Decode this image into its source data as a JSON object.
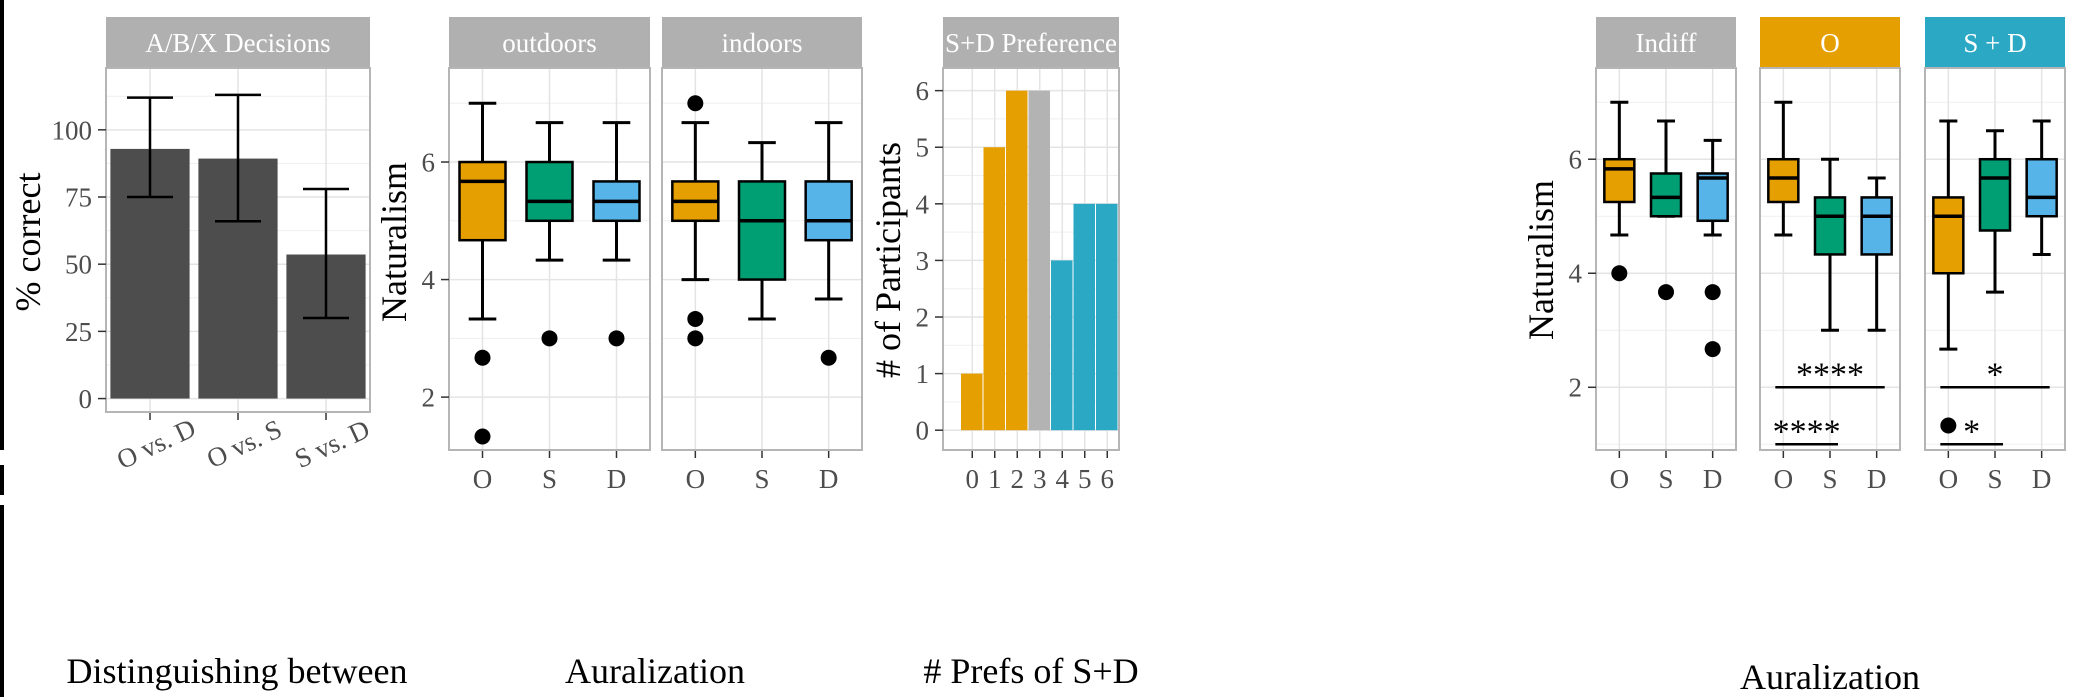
{
  "figure": {
    "facet_strip_color": "#b0b0b0",
    "panel_border_color": "#b5b5b5",
    "grid_color": "#e4e4e4",
    "bar_color": "#4d4d4d",
    "colors": {
      "O": "#e69f00",
      "S": "#009e73",
      "D": "#56b4e9",
      "Indiff": "#b3b3b3",
      "S+D": "#2aa8c4"
    }
  },
  "chart_data": [
    {
      "id": "abx",
      "type": "bar",
      "strip": "A/B/X Decisions",
      "title": "",
      "xlabel": "Distinguishing between",
      "ylabel": "% correct",
      "categories": [
        "O vs. D",
        "O vs. S",
        "S vs. D"
      ],
      "values": [
        92.9,
        89.3,
        53.6
      ],
      "error_low": [
        75,
        66,
        30
      ],
      "error_high": [
        112,
        113,
        78
      ],
      "ylim": [
        -5,
        123
      ],
      "yticks": [
        0,
        25,
        50,
        75,
        100
      ],
      "ytick_labels": [
        "0",
        "25",
        "50",
        "75",
        "100"
      ],
      "grid": true
    },
    {
      "id": "naturalism",
      "type": "box",
      "title": "",
      "xlabel": "Auralization",
      "ylabel": "Naturalism",
      "ylim": [
        1.1,
        7.6
      ],
      "yticks": [
        2,
        4,
        6
      ],
      "ytick_labels": [
        "2",
        "4",
        "6"
      ],
      "facets": [
        {
          "strip": "outdoors",
          "groups": [
            {
              "label": "O",
              "color_key": "O",
              "min": 3.33,
              "q1": 4.67,
              "median": 5.67,
              "q3": 6.0,
              "max": 7.0,
              "outliers": [
                2.67,
                1.33
              ]
            },
            {
              "label": "S",
              "color_key": "S",
              "min": 4.33,
              "q1": 5.0,
              "median": 5.33,
              "q3": 6.0,
              "max": 6.67,
              "outliers": [
                3.0
              ]
            },
            {
              "label": "D",
              "color_key": "D",
              "min": 4.33,
              "q1": 5.0,
              "median": 5.33,
              "q3": 5.67,
              "max": 6.67,
              "outliers": [
                3.0
              ]
            }
          ]
        },
        {
          "strip": "indoors",
          "groups": [
            {
              "label": "O",
              "color_key": "O",
              "min": 4.0,
              "q1": 5.0,
              "median": 5.33,
              "q3": 5.67,
              "max": 6.67,
              "outliers": [
                7.0,
                3.33,
                3.0
              ]
            },
            {
              "label": "S",
              "color_key": "S",
              "min": 3.33,
              "q1": 4.0,
              "median": 5.0,
              "q3": 5.67,
              "max": 6.33,
              "outliers": []
            },
            {
              "label": "D",
              "color_key": "D",
              "min": 3.67,
              "q1": 4.67,
              "median": 5.0,
              "q3": 5.67,
              "max": 6.67,
              "outliers": [
                2.67
              ]
            }
          ]
        }
      ]
    },
    {
      "id": "preference",
      "type": "bar",
      "strip": "S+D Preference",
      "title": "",
      "xlabel": "# Prefs of S+D",
      "ylabel": "# of Participants",
      "categories": [
        "0",
        "1",
        "2",
        "3",
        "4",
        "5",
        "6"
      ],
      "values": [
        1,
        5,
        6,
        6,
        3,
        4,
        4
      ],
      "color_keys": [
        "O",
        "O",
        "O",
        "Indiff",
        "S+D",
        "S+D",
        "S+D"
      ],
      "ylim": [
        -0.35,
        6.4
      ],
      "yticks": [
        0,
        1,
        2,
        3,
        4,
        5,
        6
      ],
      "ytick_labels": [
        "0",
        "1",
        "2",
        "3",
        "4",
        "5",
        "6"
      ],
      "grid": true
    },
    {
      "id": "by_preference",
      "type": "box",
      "title": "",
      "xlabel": "Auralization",
      "ylabel": "Naturalism",
      "ylim": [
        0.9,
        7.6
      ],
      "yticks": [
        2,
        4,
        6
      ],
      "ytick_labels": [
        "2",
        "4",
        "6"
      ],
      "facets": [
        {
          "strip": "Indiff",
          "strip_color_key": "Indiff",
          "groups": [
            {
              "label": "O",
              "color_key": "O",
              "min": 4.67,
              "q1": 5.25,
              "median": 5.83,
              "q3": 6.0,
              "max": 7.0,
              "outliers": [
                4.0
              ]
            },
            {
              "label": "S",
              "color_key": "S",
              "min": 5.0,
              "q1": 5.0,
              "median": 5.33,
              "q3": 5.75,
              "max": 6.67,
              "outliers": [
                3.67
              ]
            },
            {
              "label": "D",
              "color_key": "D",
              "min": 4.67,
              "q1": 4.92,
              "median": 5.67,
              "q3": 5.75,
              "max": 6.33,
              "outliers": [
                3.67,
                2.67
              ]
            }
          ],
          "annotations": []
        },
        {
          "strip": "O",
          "strip_color_key": "O",
          "groups": [
            {
              "label": "O",
              "color_key": "O",
              "min": 4.67,
              "q1": 5.25,
              "median": 5.67,
              "q3": 6.0,
              "max": 7.0,
              "outliers": []
            },
            {
              "label": "S",
              "color_key": "S",
              "min": 3.0,
              "q1": 4.33,
              "median": 5.0,
              "q3": 5.33,
              "max": 6.0,
              "outliers": []
            },
            {
              "label": "D",
              "color_key": "D",
              "min": 3.0,
              "q1": 4.33,
              "median": 5.0,
              "q3": 5.33,
              "max": 5.67,
              "outliers": []
            }
          ],
          "annotations": [
            {
              "text": "****",
              "from": 0,
              "to": 2,
              "y": 2.0
            },
            {
              "text": "****",
              "from": 0,
              "to": 1,
              "y": 1.0
            }
          ]
        },
        {
          "strip": "S + D",
          "strip_color_key": "S+D",
          "groups": [
            {
              "label": "O",
              "color_key": "O",
              "min": 2.67,
              "q1": 4.0,
              "median": 5.0,
              "q3": 5.33,
              "max": 6.67,
              "outliers": [
                1.33
              ]
            },
            {
              "label": "S",
              "color_key": "S",
              "min": 3.67,
              "q1": 4.75,
              "median": 5.67,
              "q3": 6.0,
              "max": 6.5,
              "outliers": []
            },
            {
              "label": "D",
              "color_key": "D",
              "min": 4.33,
              "q1": 5.0,
              "median": 5.33,
              "q3": 6.0,
              "max": 6.67,
              "outliers": []
            }
          ],
          "annotations": [
            {
              "text": "*",
              "from": 0,
              "to": 2,
              "y": 2.0
            },
            {
              "text": "*",
              "from": 0,
              "to": 1,
              "y": 1.0
            }
          ]
        }
      ]
    }
  ]
}
